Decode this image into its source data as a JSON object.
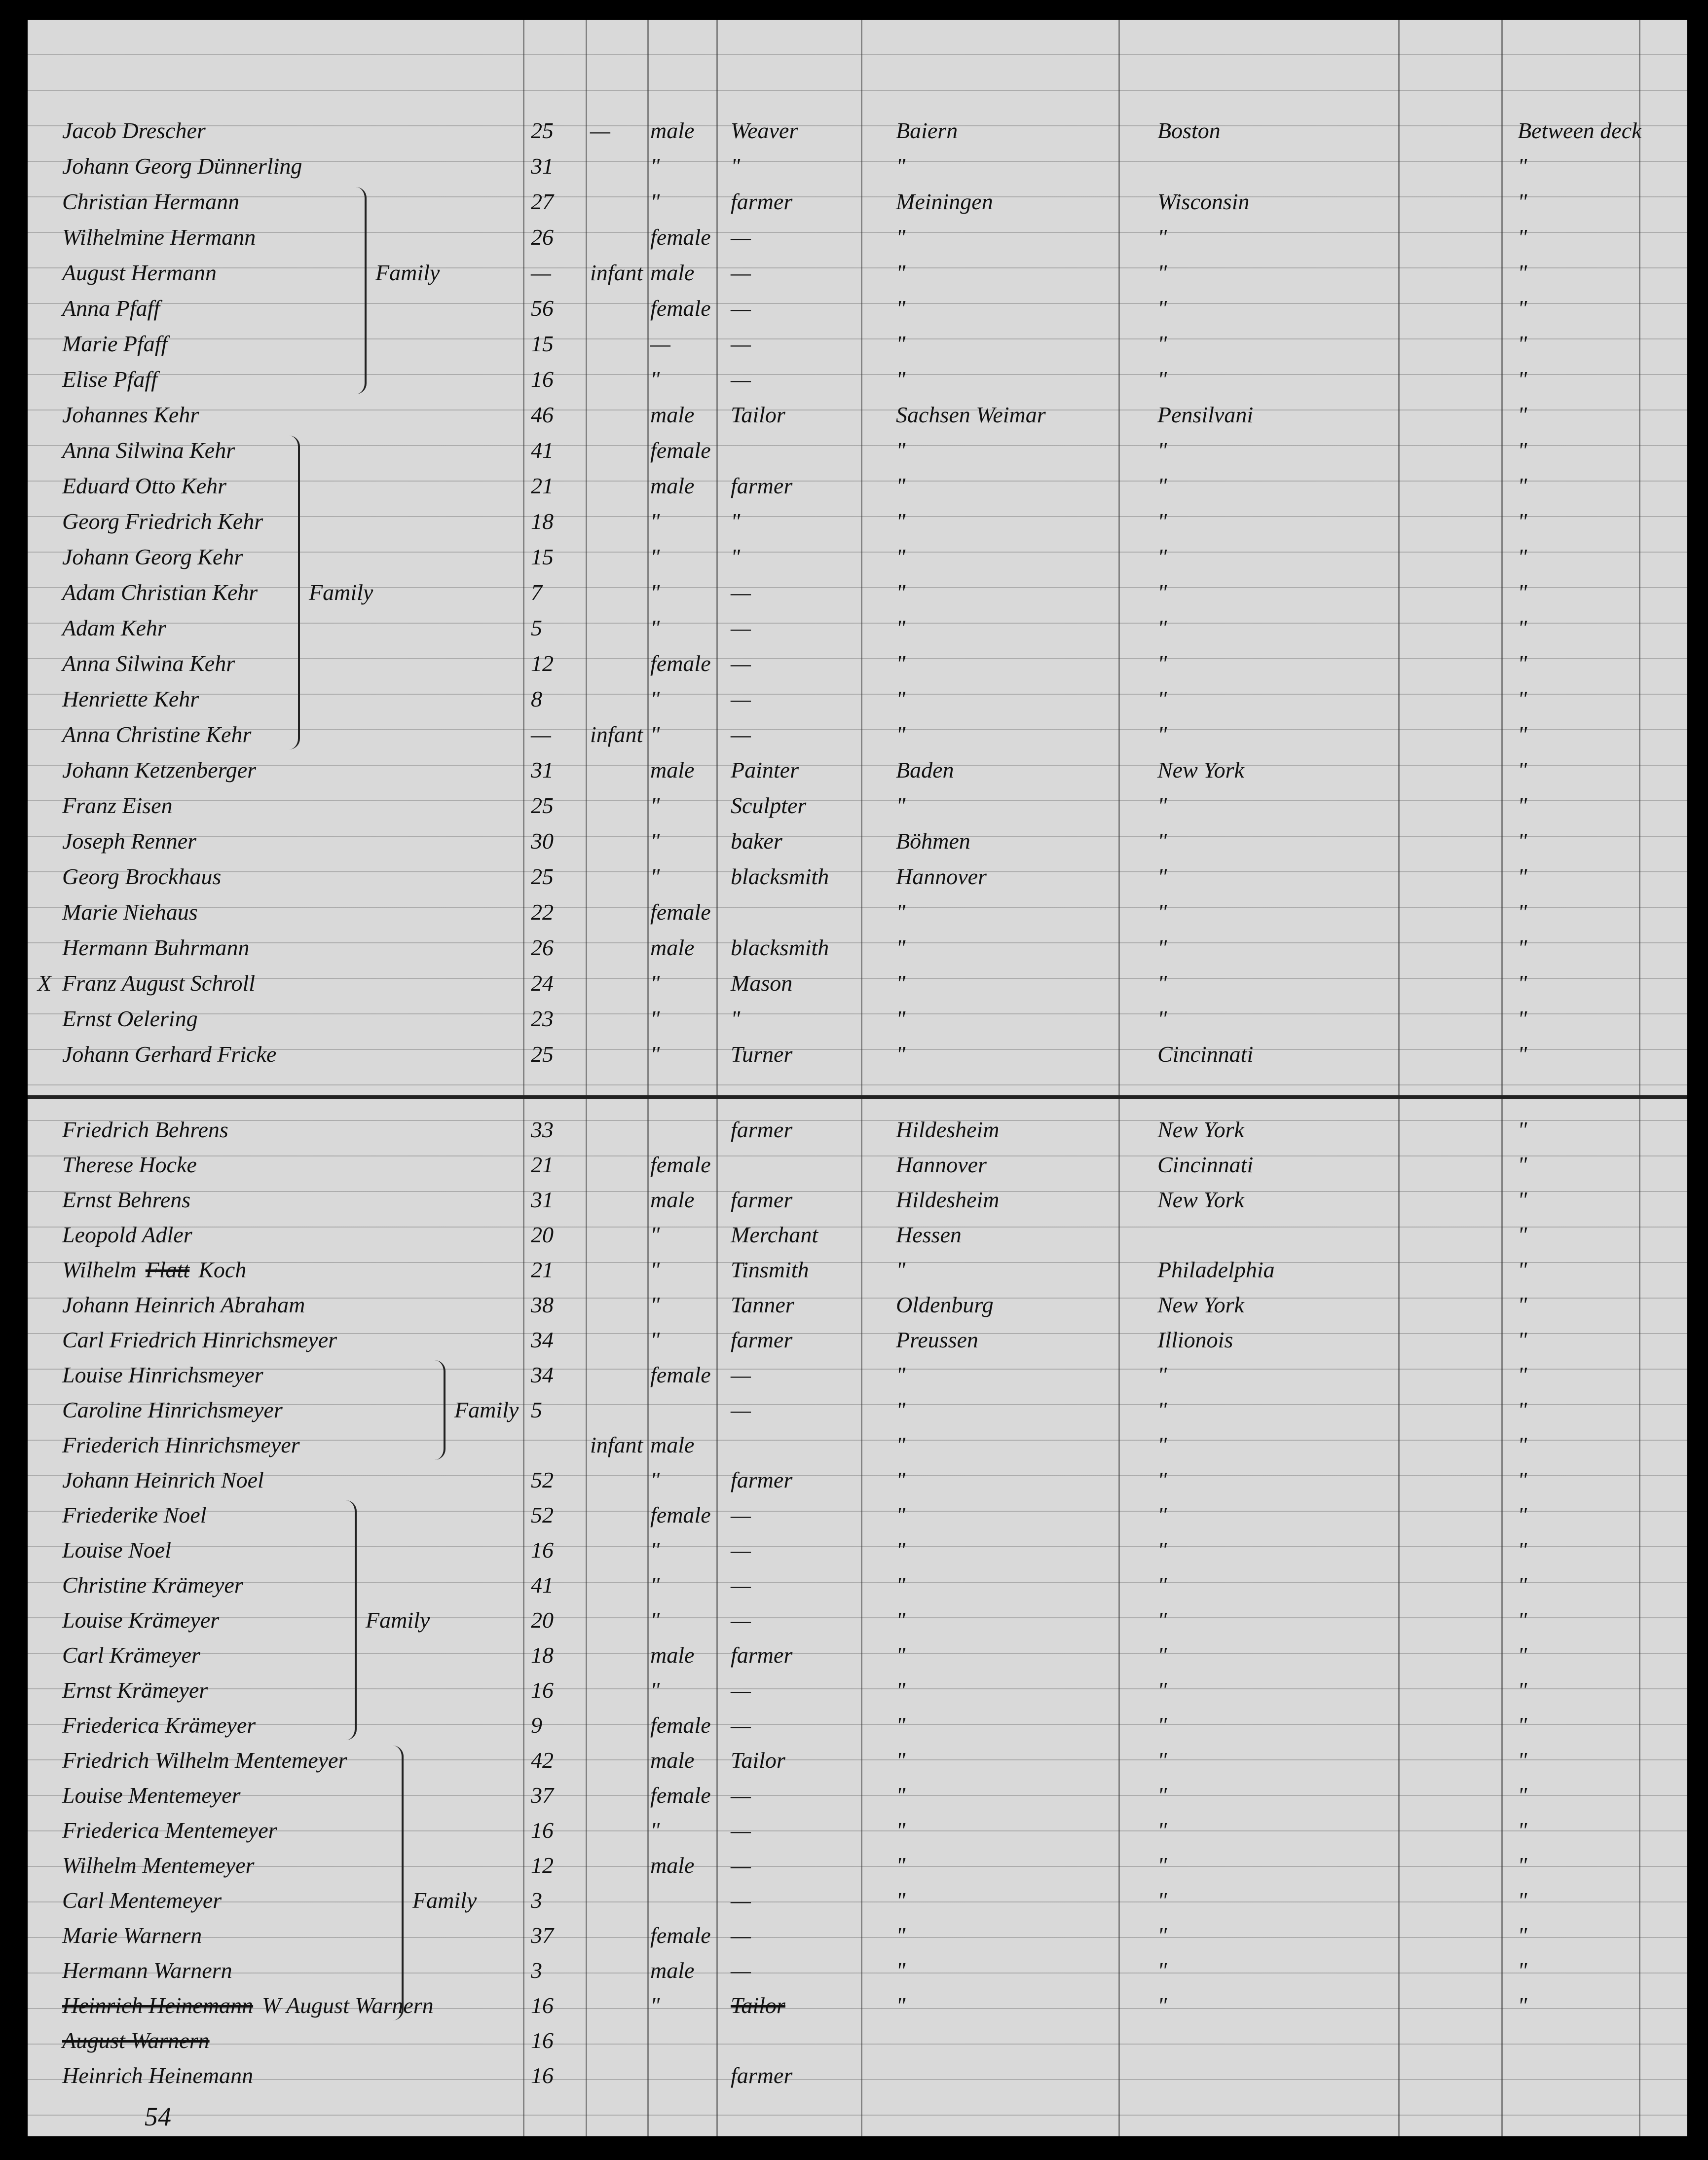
{
  "page_number": "54",
  "rows": [
    {
      "name": "Jacob Drescher",
      "age": "25",
      "infant": "—",
      "sex": "male",
      "occupation": "Weaver",
      "origin": "Baiern",
      "destination": "Boston",
      "deck": "Between deck"
    },
    {
      "name": "Johann Georg Dünnerling",
      "age": "31",
      "sex": "\"",
      "occupation": "\"",
      "origin": "\"",
      "deck": "\""
    },
    {
      "name": "Christian Hermann",
      "age": "27",
      "sex": "\"",
      "occupation": "farmer",
      "origin": "Meiningen",
      "destination": "Wisconsin",
      "deck": "\""
    },
    {
      "name": "Wilhelmine Hermann",
      "age": "26",
      "sex": "female",
      "occupation": "—",
      "origin": "\"",
      "destination": "\"",
      "deck": "\""
    },
    {
      "name": "August Hermann",
      "age": "—",
      "infant": "infant",
      "sex": "male",
      "occupation": "—",
      "origin": "\"",
      "destination": "\"",
      "deck": "\"",
      "family": "Family"
    },
    {
      "name": "Anna Pfaff",
      "age": "56",
      "sex": "female",
      "occupation": "—",
      "origin": "\"",
      "destination": "\"",
      "deck": "\""
    },
    {
      "name": "Marie Pfaff",
      "age": "15",
      "sex": "—",
      "occupation": "—",
      "origin": "\"",
      "destination": "\"",
      "deck": "\""
    },
    {
      "name": "Elise Pfaff",
      "age": "16",
      "sex": "\"",
      "occupation": "—",
      "origin": "\"",
      "destination": "\"",
      "deck": "\""
    },
    {
      "name": "Johannes Kehr",
      "age": "46",
      "sex": "male",
      "occupation": "Tailor",
      "origin": "Sachsen Weimar",
      "destination": "Pensilvani",
      "deck": "\""
    },
    {
      "name": "Anna Silwina Kehr",
      "age": "41",
      "sex": "female",
      "origin": "\"",
      "destination": "\"",
      "deck": "\""
    },
    {
      "name": "Eduard Otto Kehr",
      "age": "21",
      "sex": "male",
      "occupation": "farmer",
      "origin": "\"",
      "destination": "\"",
      "deck": "\""
    },
    {
      "name": "Georg Friedrich Kehr",
      "age": "18",
      "sex": "\"",
      "occupation": "\"",
      "origin": "\"",
      "destination": "\"",
      "deck": "\""
    },
    {
      "name": "Johann Georg Kehr",
      "age": "15",
      "sex": "\"",
      "occupation": "\"",
      "origin": "\"",
      "destination": "\"",
      "deck": "\""
    },
    {
      "name": "Adam Christian Kehr",
      "age": "7",
      "sex": "\"",
      "occupation": "—",
      "origin": "\"",
      "destination": "\"",
      "deck": "\"",
      "family": "Family"
    },
    {
      "name": "Adam Kehr",
      "age": "5",
      "sex": "\"",
      "occupation": "—",
      "origin": "\"",
      "destination": "\"",
      "deck": "\""
    },
    {
      "name": "Anna Silwina Kehr",
      "age": "12",
      "sex": "female",
      "occupation": "—",
      "origin": "\"",
      "destination": "\"",
      "deck": "\""
    },
    {
      "name": "Henriette Kehr",
      "age": "8",
      "sex": "\"",
      "occupation": "—",
      "origin": "\"",
      "destination": "\"",
      "deck": "\""
    },
    {
      "name": "Anna Christine Kehr",
      "age": "—",
      "infant": "infant",
      "sex": "\"",
      "occupation": "—",
      "origin": "\"",
      "destination": "\"",
      "deck": "\""
    },
    {
      "name": "Johann Ketzenberger",
      "age": "31",
      "sex": "male",
      "occupation": "Painter",
      "origin": "Baden",
      "destination": "New York",
      "deck": "\""
    },
    {
      "name": "Franz Eisen",
      "age": "25",
      "sex": "\"",
      "occupation": "Sculpter",
      "origin": "\"",
      "destination": "\"",
      "deck": "\""
    },
    {
      "name": "Joseph Renner",
      "age": "30",
      "sex": "\"",
      "occupation": "baker",
      "origin": "Böhmen",
      "destination": "\"",
      "deck": "\""
    },
    {
      "name": "Georg Brockhaus",
      "age": "25",
      "sex": "\"",
      "occupation": "blacksmith",
      "origin": "Hannover",
      "destination": "\"",
      "deck": "\""
    },
    {
      "name": "Marie Niehaus",
      "age": "22",
      "sex": "female",
      "origin": "\"",
      "destination": "\"",
      "deck": "\""
    },
    {
      "name": "Hermann Buhrmann",
      "age": "26",
      "sex": "male",
      "occupation": "blacksmith",
      "origin": "\"",
      "destination": "\"",
      "deck": "\""
    },
    {
      "mark": "X",
      "name": "Franz August Schroll",
      "age": "24",
      "sex": "\"",
      "occupation": "Mason",
      "origin": "\"",
      "destination": "\"",
      "deck": "\""
    },
    {
      "name": "Ernst Oelering",
      "age": "23",
      "sex": "\"",
      "occupation": "\"",
      "origin": "\"",
      "destination": "\"",
      "deck": "\""
    },
    {
      "name": "Johann Gerhard Fricke",
      "age": "25",
      "sex": "\"",
      "occupation": "Turner",
      "origin": "\"",
      "destination": "Cincinnati",
      "deck": "\""
    },
    {
      "name": "Friedrich Behrens",
      "age": "33",
      "occupation": "farmer",
      "origin": "Hildesheim",
      "destination": "New York",
      "deck": "\""
    },
    {
      "name": "Therese Hocke",
      "age": "21",
      "sex": "female",
      "origin": "Hannover",
      "destination": "Cincinnati",
      "deck": "\""
    },
    {
      "name": "Ernst Behrens",
      "age": "31",
      "sex": "male",
      "occupation": "farmer",
      "origin": "Hildesheim",
      "destination": "New York",
      "deck": "\""
    },
    {
      "name": "Leopold Adler",
      "age": "20",
      "sex": "\"",
      "occupation": "Merchant",
      "origin": "Hessen",
      "deck": "\""
    },
    {
      "name": "Wilhelm",
      "struck_name": "Flatt",
      "name_end": "Koch",
      "age": "21",
      "sex": "\"",
      "occupation": "Tinsmith",
      "origin": "\"",
      "destination": "Philadelphia",
      "deck": "\""
    },
    {
      "name": "Johann Heinrich Abraham",
      "age": "38",
      "sex": "\"",
      "occupation": "Tanner",
      "origin": "Oldenburg",
      "destination": "New York",
      "deck": "\""
    },
    {
      "name": "Carl Friedrich Hinrichsmeyer",
      "age": "34",
      "sex": "\"",
      "occupation": "farmer",
      "origin": "Preussen",
      "destination": "Illionois",
      "deck": "\""
    },
    {
      "name": "Louise Hinrichsmeyer",
      "age": "34",
      "sex": "female",
      "occupation": "—",
      "origin": "\"",
      "destination": "\"",
      "deck": "\""
    },
    {
      "name": "Caroline Hinrichsmeyer",
      "age": "5",
      "occupation": "—",
      "origin": "\"",
      "destination": "\"",
      "deck": "\"",
      "family": "Family"
    },
    {
      "name": "Friederich Hinrichsmeyer",
      "infant": "infant",
      "sex": "male",
      "origin": "\"",
      "destination": "\"",
      "deck": "\""
    },
    {
      "name": "Johann Heinrich Noel",
      "age": "52",
      "sex": "\"",
      "occupation": "farmer",
      "origin": "\"",
      "destination": "\"",
      "deck": "\""
    },
    {
      "name": "Friederike Noel",
      "age": "52",
      "sex": "female",
      "occupation": "—",
      "origin": "\"",
      "destination": "\"",
      "deck": "\""
    },
    {
      "name": "Louise Noel",
      "age": "16",
      "sex": "\"",
      "occupation": "—",
      "origin": "\"",
      "destination": "\"",
      "deck": "\""
    },
    {
      "name": "Christine Krämeyer",
      "age": "41",
      "sex": "\"",
      "occupation": "—",
      "origin": "\"",
      "destination": "\"",
      "deck": "\""
    },
    {
      "name": "Louise Krämeyer",
      "age": "20",
      "sex": "\"",
      "occupation": "—",
      "origin": "\"",
      "destination": "\"",
      "deck": "\"",
      "family": "Family"
    },
    {
      "name": "Carl Krämeyer",
      "age": "18",
      "sex": "male",
      "occupation": "farmer",
      "origin": "\"",
      "destination": "\"",
      "deck": "\""
    },
    {
      "name": "Ernst Krämeyer",
      "age": "16",
      "sex": "\"",
      "occupation": "—",
      "origin": "\"",
      "destination": "\"",
      "deck": "\""
    },
    {
      "name": "Friederica Krämeyer",
      "age": "9",
      "sex": "female",
      "occupation": "—",
      "origin": "\"",
      "destination": "\"",
      "deck": "\""
    },
    {
      "name": "Friedrich Wilhelm Mentemeyer",
      "age": "42",
      "sex": "male",
      "occupation": "Tailor",
      "origin": "\"",
      "destination": "\"",
      "deck": "\""
    },
    {
      "name": "Louise Mentemeyer",
      "age": "37",
      "sex": "female",
      "occupation": "—",
      "origin": "\"",
      "destination": "\"",
      "deck": "\""
    },
    {
      "name": "Friederica Mentemeyer",
      "age": "16",
      "sex": "\"",
      "occupation": "—",
      "origin": "\"",
      "destination": "\"",
      "deck": "\""
    },
    {
      "name": "Wilhelm Mentemeyer",
      "age": "12",
      "sex": "male",
      "occupation": "—",
      "origin": "\"",
      "destination": "\"",
      "deck": "\""
    },
    {
      "name": "Carl Mentemeyer",
      "age": "3",
      "occupation": "—",
      "origin": "\"",
      "destination": "\"",
      "deck": "\"",
      "family": "Family"
    },
    {
      "name": "Marie Warnern",
      "age": "37",
      "sex": "female",
      "occupation": "—",
      "origin": "\"",
      "destination": "\"",
      "deck": "\""
    },
    {
      "name": "Hermann Warnern",
      "age": "3",
      "sex": "male",
      "occupation": "—",
      "origin": "\"",
      "destination": "\"",
      "deck": "\""
    },
    {
      "struck_name": "Heinrich Heinemann",
      "name_end": "W August Warnern",
      "age": "16",
      "sex": "\"",
      "struck_occupation": "Tailor",
      "origin": "\"",
      "destination": "\"",
      "deck": "\""
    },
    {
      "struck_name": "August Warnern",
      "age": "16"
    },
    {
      "name": "Heinrich Heinemann",
      "age": "16",
      "occupation": "farmer"
    }
  ]
}
